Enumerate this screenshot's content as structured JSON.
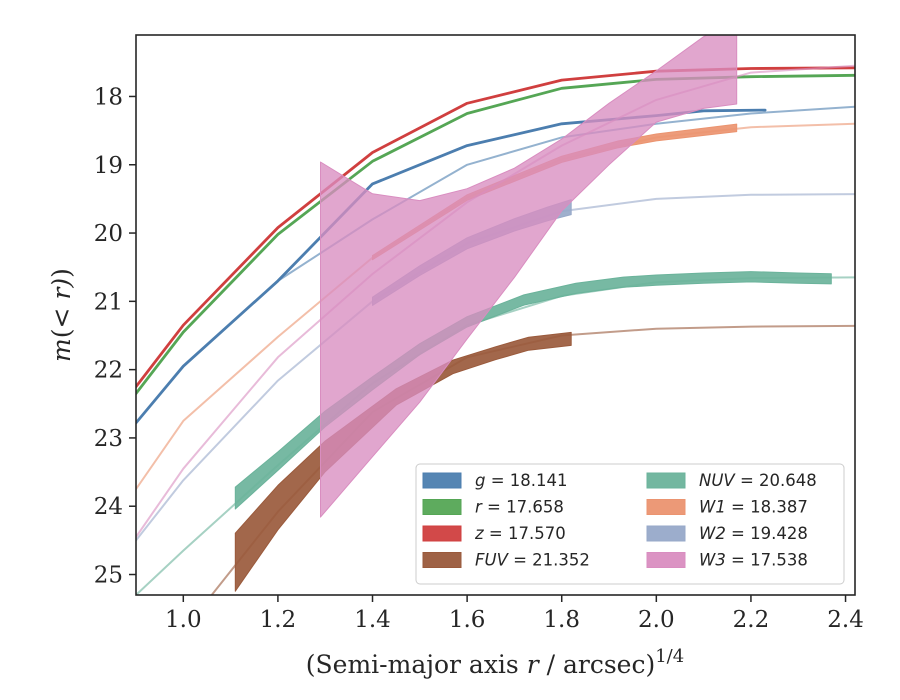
{
  "chart_data": {
    "type": "line",
    "xlabel": "(Semi-major axis r / arcsec)^1/4",
    "ylabel": "m(< r) (mag)",
    "xlim": [
      0.9,
      2.42
    ],
    "ylim": [
      25.3,
      17.1
    ],
    "y_inverted": true,
    "grid": false,
    "legend_position": "lower-right",
    "xticks": [
      "1.0",
      "1.2",
      "1.4",
      "1.6",
      "1.8",
      "2.0",
      "2.2",
      "2.4"
    ],
    "yticks": [
      "18",
      "19",
      "20",
      "21",
      "22",
      "23",
      "24",
      "25"
    ],
    "series": [
      {
        "name": "g = 18.141",
        "band": "g",
        "value": "18.141",
        "color": "#4c7eaf",
        "model_x": [
          0.9,
          1.0,
          1.2,
          1.4,
          1.6,
          1.8,
          2.0,
          2.2,
          2.42
        ],
        "model_y": [
          22.78,
          21.95,
          20.7,
          19.8,
          19.0,
          18.6,
          18.4,
          18.25,
          18.15
        ],
        "data_x": [
          0.9,
          1.0,
          1.2,
          1.4,
          1.6,
          1.8,
          2.0,
          2.1,
          2.23
        ],
        "data_y": [
          22.78,
          21.95,
          20.7,
          19.28,
          18.72,
          18.4,
          18.28,
          18.21,
          18.2
        ],
        "band_width": [
          0.04,
          0.04,
          0.04,
          0.04,
          0.04,
          0.04,
          0.04,
          0.04,
          0.04
        ]
      },
      {
        "name": "r = 17.658",
        "band": "r",
        "value": "17.658",
        "color": "#55a655",
        "model_x": [
          0.9,
          1.0,
          1.2,
          1.4,
          1.6,
          1.8,
          2.0,
          2.2,
          2.42
        ],
        "model_y": [
          22.35,
          21.45,
          20.02,
          18.95,
          18.25,
          17.88,
          17.75,
          17.71,
          17.69
        ],
        "data_x": [
          0.9,
          1.0,
          1.2,
          1.4,
          1.6,
          1.8,
          2.0,
          2.2,
          2.42
        ],
        "data_y": [
          22.35,
          21.45,
          20.02,
          18.95,
          18.25,
          17.88,
          17.75,
          17.71,
          17.69
        ],
        "band_width": [
          0.04,
          0.04,
          0.04,
          0.04,
          0.04,
          0.04,
          0.04,
          0.04,
          0.04
        ]
      },
      {
        "name": "z = 17.570",
        "band": "z",
        "value": "17.570",
        "color": "#d03f3f",
        "model_x": [
          0.9,
          1.0,
          1.2,
          1.4,
          1.6,
          1.8,
          2.0,
          2.2,
          2.42
        ],
        "model_y": [
          22.25,
          21.35,
          19.92,
          18.82,
          18.1,
          17.76,
          17.63,
          17.59,
          17.58
        ],
        "data_x": [
          0.9,
          1.0,
          1.2,
          1.4,
          1.6,
          1.8,
          2.0,
          2.2,
          2.42
        ],
        "data_y": [
          22.25,
          21.35,
          19.92,
          18.82,
          18.1,
          17.76,
          17.63,
          17.59,
          17.58
        ],
        "band_width": [
          0.04,
          0.04,
          0.04,
          0.04,
          0.04,
          0.04,
          0.04,
          0.04,
          0.04
        ]
      },
      {
        "name": "FUV = 21.352",
        "band": "FUV",
        "value": "21.352",
        "color": "#9a5a3c",
        "model_x": [
          1.06,
          1.2,
          1.4,
          1.6,
          1.8,
          2.0,
          2.2,
          2.42
        ],
        "model_y": [
          25.3,
          24.08,
          22.62,
          21.82,
          21.5,
          21.4,
          21.37,
          21.36
        ],
        "data_x": [
          1.11,
          1.2,
          1.3,
          1.45,
          1.57,
          1.66,
          1.73,
          1.82
        ],
        "data_y": [
          24.82,
          24.02,
          23.27,
          22.4,
          21.96,
          21.76,
          21.62,
          21.55
        ],
        "band_width": [
          0.85,
          0.65,
          0.45,
          0.24,
          0.2,
          0.19,
          0.19,
          0.19
        ]
      },
      {
        "name": "NUV = 20.648",
        "band": "NUV",
        "value": "20.648",
        "color": "#6bb39b",
        "model_x": [
          0.9,
          1.0,
          1.2,
          1.4,
          1.6,
          1.8,
          2.0,
          2.2,
          2.42
        ],
        "model_y": [
          25.3,
          24.65,
          23.4,
          22.2,
          21.35,
          20.92,
          20.72,
          20.66,
          20.65
        ],
        "data_x": [
          1.11,
          1.2,
          1.3,
          1.4,
          1.5,
          1.6,
          1.72,
          1.83,
          1.93,
          2.0,
          2.1,
          2.2,
          2.3,
          2.37
        ],
        "data_y": [
          23.88,
          23.34,
          22.72,
          22.2,
          21.7,
          21.3,
          20.98,
          20.81,
          20.72,
          20.69,
          20.66,
          20.64,
          20.66,
          20.67
        ],
        "band_width": [
          0.32,
          0.27,
          0.23,
          0.19,
          0.16,
          0.15,
          0.15,
          0.15,
          0.15,
          0.15,
          0.15,
          0.15,
          0.15,
          0.15
        ]
      },
      {
        "name": "W1 = 18.387",
        "band": "W1",
        "value": "18.387",
        "color": "#eb9470",
        "model_x": [
          0.9,
          1.0,
          1.2,
          1.4,
          1.6,
          1.8,
          2.0,
          2.2,
          2.42
        ],
        "model_y": [
          23.75,
          22.75,
          21.52,
          20.36,
          19.48,
          18.92,
          18.6,
          18.45,
          18.4
        ],
        "data_x": [
          1.4,
          1.6,
          1.8,
          1.92,
          2.0,
          2.17
        ],
        "data_y": [
          20.36,
          19.48,
          18.92,
          18.7,
          18.6,
          18.46
        ],
        "band_width": [
          0.06,
          0.08,
          0.09,
          0.1,
          0.1,
          0.11
        ]
      },
      {
        "name": "W2 = 19.428",
        "band": "W2",
        "value": "19.428",
        "color": "#97a9c9",
        "model_x": [
          0.9,
          1.0,
          1.2,
          1.4,
          1.6,
          1.8,
          2.0,
          2.2,
          2.42
        ],
        "model_y": [
          24.5,
          23.62,
          22.16,
          21.0,
          20.15,
          19.68,
          19.5,
          19.44,
          19.43
        ],
        "data_x": [
          1.4,
          1.5,
          1.6,
          1.7,
          1.77,
          1.82
        ],
        "data_y": [
          21.0,
          20.55,
          20.15,
          19.88,
          19.72,
          19.62
        ],
        "band_width": [
          0.12,
          0.14,
          0.16,
          0.18,
          0.2,
          0.22
        ]
      },
      {
        "name": "W3 = 17.538",
        "band": "W3",
        "value": "17.538",
        "color": "#d98dc0",
        "model_x": [
          0.9,
          1.0,
          1.2,
          1.4,
          1.6,
          1.8,
          2.0,
          2.2,
          2.42
        ],
        "model_y": [
          24.45,
          23.45,
          21.82,
          20.6,
          19.55,
          18.72,
          18.05,
          17.65,
          17.55
        ],
        "data_x": [
          1.29,
          1.4,
          1.5,
          1.6,
          1.7,
          1.8,
          1.9,
          2.0,
          2.1,
          2.17
        ],
        "data_y": [
          21.56,
          21.35,
          21.0,
          20.45,
          19.85,
          19.15,
          18.55,
          18.0,
          17.65,
          17.5
        ],
        "band_width": [
          5.2,
          3.85,
          2.95,
          2.2,
          1.6,
          1.05,
          0.9,
          0.75,
          1.05,
          1.22
        ]
      }
    ]
  }
}
